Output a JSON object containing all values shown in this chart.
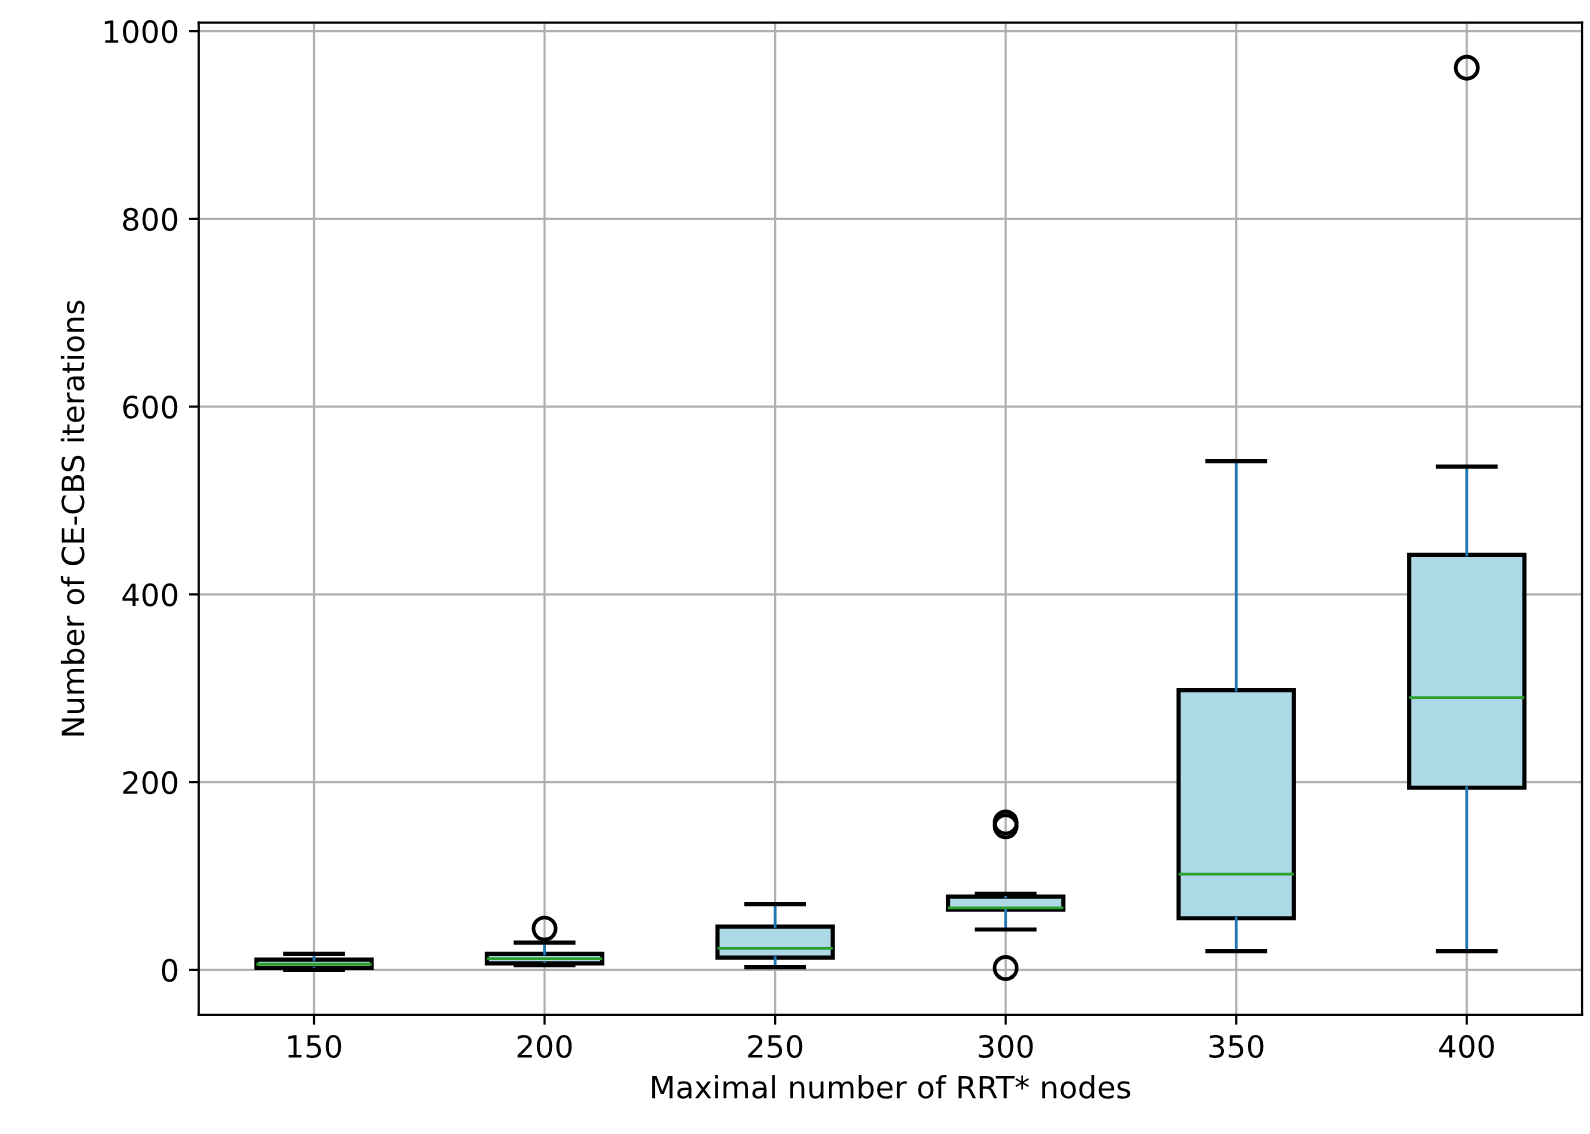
{
  "chart_data": {
    "type": "box",
    "xlabel": "Maximal number of RRT* nodes",
    "ylabel": "Number of CE-CBS iterations",
    "categories": [
      "150",
      "200",
      "250",
      "300",
      "350",
      "400"
    ],
    "boxes": [
      {
        "low": 0,
        "q1": 2,
        "median": 6,
        "q3": 11,
        "high": 17
      },
      {
        "low": 5,
        "q1": 7,
        "median": 12,
        "q3": 17,
        "high": 29,
        "outliers": [
          44
        ]
      },
      {
        "low": 3,
        "q1": 13,
        "median": 23,
        "q3": 46,
        "high": 70
      },
      {
        "low": 43,
        "q1": 64,
        "median": 66,
        "q3": 78,
        "high": 81,
        "outliers": [
          153,
          157,
          2
        ]
      },
      {
        "low": 20,
        "q1": 55,
        "median": 102,
        "q3": 298,
        "high": 542
      },
      {
        "low": 20,
        "q1": 194,
        "median": 290,
        "q3": 442,
        "high": 536,
        "outliers": [
          961
        ]
      }
    ],
    "color": "#add8e6",
    "ylim": [
      -48,
      1009
    ],
    "yticks": [
      0,
      200,
      400,
      600,
      800,
      1000
    ],
    "grid": true
  }
}
